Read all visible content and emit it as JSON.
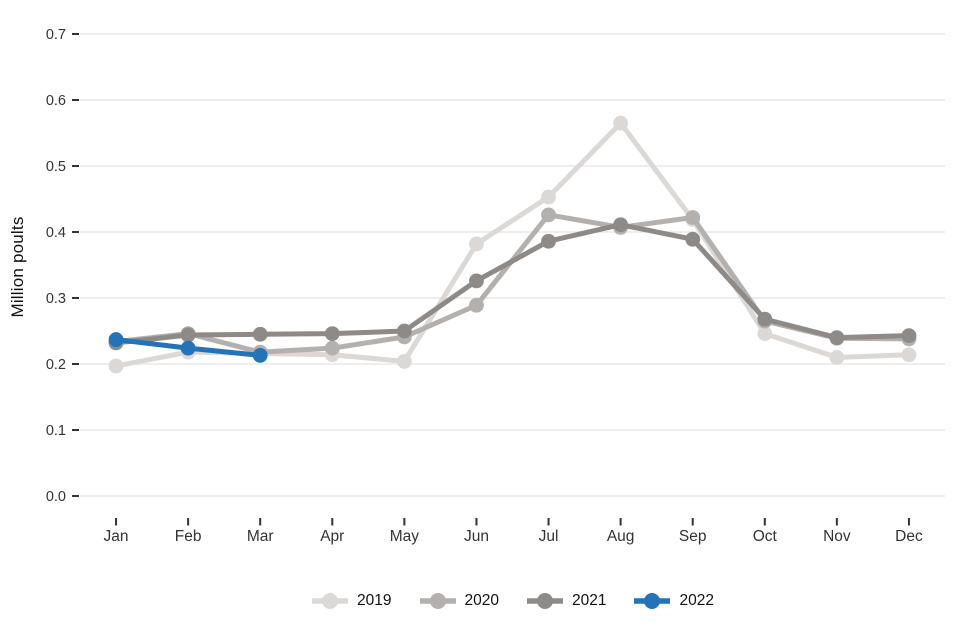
{
  "chart_data": {
    "type": "line",
    "title": "",
    "xlabel": "",
    "ylabel": "Million poults",
    "ylim": [
      0.0,
      0.7
    ],
    "ytick_labels": [
      "0.0",
      "0.1",
      "0.2",
      "0.3",
      "0.4",
      "0.5",
      "0.6",
      "0.7"
    ],
    "categories": [
      "Jan",
      "Feb",
      "Mar",
      "Apr",
      "May",
      "Jun",
      "Jul",
      "Aug",
      "Sep",
      "Oct",
      "Nov",
      "Dec"
    ],
    "series": [
      {
        "name": "2019",
        "color": "#dbd8d6",
        "values": [
          0.197,
          0.218,
          0.216,
          0.214,
          0.204,
          0.382,
          0.453,
          0.565,
          0.419,
          0.246,
          0.21,
          0.214
        ]
      },
      {
        "name": "2020",
        "color": "#b4b0ae",
        "values": [
          0.234,
          0.246,
          0.218,
          0.224,
          0.241,
          0.289,
          0.426,
          0.407,
          0.422,
          0.265,
          0.239,
          0.238
        ]
      },
      {
        "name": "2021",
        "color": "#8e8a88",
        "values": [
          0.232,
          0.244,
          0.245,
          0.246,
          0.25,
          0.326,
          0.386,
          0.411,
          0.389,
          0.268,
          0.24,
          0.243
        ]
      },
      {
        "name": "2022",
        "color": "#2273b8",
        "values": [
          0.237,
          0.224,
          0.213
        ]
      }
    ],
    "legend_position": "bottom",
    "grid": true,
    "background": "#ffffff",
    "gridline_color": "#e8e8e8",
    "tick_color": "#333333",
    "tick_label_color": "#333333"
  }
}
